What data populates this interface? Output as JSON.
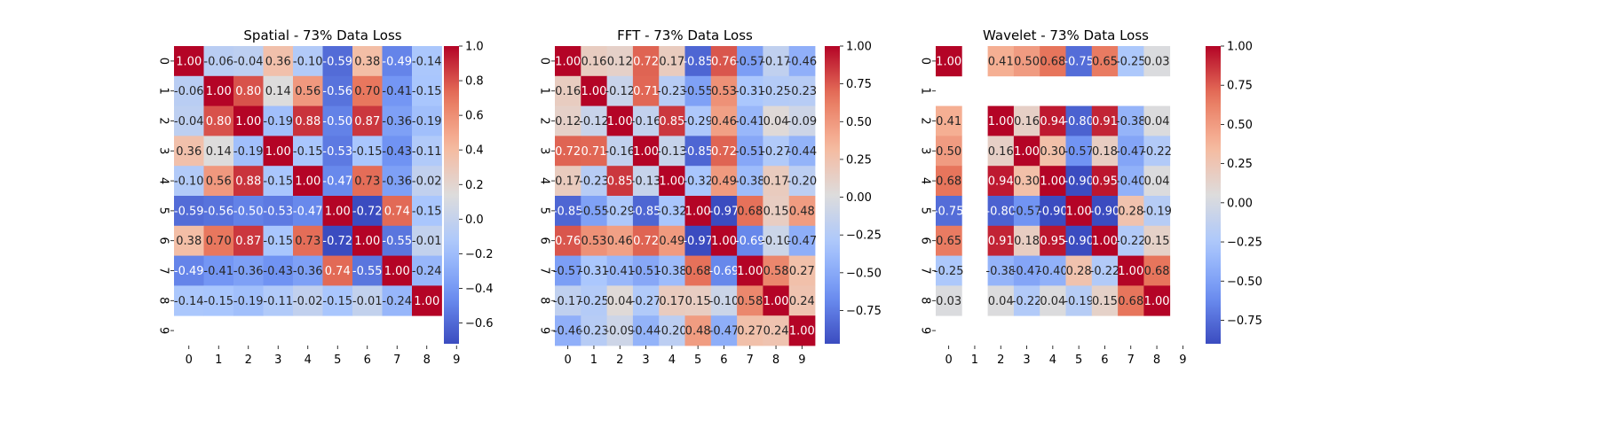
{
  "colormap": {
    "name": "coolwarm",
    "stops": [
      "#3b4cc0",
      "#6f92f3",
      "#aac7fd",
      "#dddcdc",
      "#f7b89c",
      "#e7745b",
      "#b40426"
    ]
  },
  "chart_data": [
    {
      "type": "heatmap",
      "title": "Spatial - 73% Data Loss",
      "x_ticks": [
        "0",
        "1",
        "2",
        "3",
        "4",
        "5",
        "6",
        "7",
        "8",
        "9"
      ],
      "y_ticks": [
        "0",
        "1",
        "2",
        "3",
        "4",
        "5",
        "6",
        "7",
        "8",
        "9"
      ],
      "vmin": -0.72,
      "vmax": 1.0,
      "colorbar_ticks": [
        "1.0",
        "0.8",
        "0.6",
        "0.4",
        "0.2",
        "0.0",
        "−0.2",
        "−0.4",
        "−0.6"
      ],
      "colorbar_tick_values": [
        1.0,
        0.8,
        0.6,
        0.4,
        0.2,
        0.0,
        -0.2,
        -0.4,
        -0.6
      ],
      "matrix": [
        [
          "1.00",
          "-0.06",
          "-0.04",
          "0.36",
          "-0.10",
          "-0.59",
          "0.38",
          "-0.49",
          "-0.14",
          null
        ],
        [
          "-0.06",
          "1.00",
          "0.80",
          "0.14",
          "0.56",
          "-0.56",
          "0.70",
          "-0.41",
          "-0.15",
          null
        ],
        [
          "-0.04",
          "0.80",
          "1.00",
          "-0.19",
          "0.88",
          "-0.50",
          "0.87",
          "-0.36",
          "-0.19",
          null
        ],
        [
          "0.36",
          "0.14",
          "-0.19",
          "1.00",
          "-0.15",
          "-0.53",
          "-0.15",
          "-0.43",
          "-0.11",
          null
        ],
        [
          "-0.10",
          "0.56",
          "0.88",
          "-0.15",
          "1.00",
          "-0.47",
          "0.73",
          "-0.36",
          "-0.02",
          null
        ],
        [
          "-0.59",
          "-0.56",
          "-0.50",
          "-0.53",
          "-0.47",
          "1.00",
          "-0.72",
          "0.74",
          "-0.15",
          null
        ],
        [
          "0.38",
          "0.70",
          "0.87",
          "-0.15",
          "0.73",
          "-0.72",
          "1.00",
          "-0.55",
          "-0.01",
          null
        ],
        [
          "-0.49",
          "-0.41",
          "-0.36",
          "-0.43",
          "-0.36",
          "0.74",
          "-0.55",
          "1.00",
          "-0.24",
          null
        ],
        [
          "-0.14",
          "-0.15",
          "-0.19",
          "-0.11",
          "-0.02",
          "-0.15",
          "-0.01",
          "-0.24",
          "1.00",
          null
        ],
        [
          null,
          null,
          null,
          null,
          null,
          null,
          null,
          null,
          null,
          null
        ]
      ]
    },
    {
      "type": "heatmap",
      "title": "FFT - 73% Data Loss",
      "x_ticks": [
        "0",
        "1",
        "2",
        "3",
        "4",
        "5",
        "6",
        "7",
        "8",
        "9"
      ],
      "y_ticks": [
        "0",
        "1",
        "2",
        "3",
        "4",
        "5",
        "6",
        "7",
        "8",
        "9"
      ],
      "vmin": -0.97,
      "vmax": 1.0,
      "colorbar_ticks": [
        "1.00",
        "0.75",
        "0.50",
        "0.25",
        "0.00",
        "−0.25",
        "−0.50",
        "−0.75"
      ],
      "colorbar_tick_values": [
        1.0,
        0.75,
        0.5,
        0.25,
        0.0,
        -0.25,
        -0.5,
        -0.75
      ],
      "matrix": [
        [
          "1.00",
          "0.16",
          "0.12",
          "0.72",
          "0.17",
          "-0.85",
          "0.76",
          "-0.57",
          "-0.17",
          "-0.46"
        ],
        [
          "0.16",
          "1.00",
          "-0.12",
          "0.71",
          "-0.23",
          "-0.55",
          "0.53",
          "-0.31",
          "-0.25",
          "-0.23"
        ],
        [
          "0.12",
          "-0.12",
          "1.00",
          "-0.16",
          "0.85",
          "-0.29",
          "0.46",
          "-0.41",
          "0.04",
          "-0.09"
        ],
        [
          "0.72",
          "0.71",
          "-0.16",
          "1.00",
          "-0.13",
          "-0.85",
          "0.72",
          "-0.51",
          "-0.27",
          "-0.44"
        ],
        [
          "0.17",
          "-0.23",
          "0.85",
          "-0.13",
          "1.00",
          "-0.32",
          "0.49",
          "-0.38",
          "0.17",
          "-0.20"
        ],
        [
          "-0.85",
          "-0.55",
          "-0.29",
          "-0.85",
          "-0.32",
          "1.00",
          "-0.97",
          "0.68",
          "0.15",
          "0.48"
        ],
        [
          "0.76",
          "0.53",
          "0.46",
          "0.72",
          "0.49",
          "-0.97",
          "1.00",
          "-0.69",
          "-0.10",
          "-0.47"
        ],
        [
          "-0.57",
          "-0.31",
          "-0.41",
          "-0.51",
          "-0.38",
          "0.68",
          "-0.69",
          "1.00",
          "0.58",
          "0.27"
        ],
        [
          "-0.17",
          "-0.25",
          "0.04",
          "-0.27",
          "0.17",
          "0.15",
          "-0.10",
          "0.58",
          "1.00",
          "0.24"
        ],
        [
          "-0.46",
          "-0.23",
          "-0.09",
          "-0.44",
          "-0.20",
          "0.48",
          "-0.47",
          "0.27",
          "0.24",
          "1.00"
        ]
      ]
    },
    {
      "type": "heatmap",
      "title": "Wavelet - 73% Data Loss",
      "x_ticks": [
        "0",
        "1",
        "2",
        "3",
        "4",
        "5",
        "6",
        "7",
        "8",
        "9"
      ],
      "y_ticks": [
        "0",
        "1",
        "2",
        "3",
        "4",
        "5",
        "6",
        "7",
        "8",
        "9"
      ],
      "vmin": -0.9,
      "vmax": 1.0,
      "colorbar_ticks": [
        "1.00",
        "0.75",
        "0.50",
        "0.25",
        "0.00",
        "−0.25",
        "−0.50",
        "−0.75"
      ],
      "colorbar_tick_values": [
        1.0,
        0.75,
        0.5,
        0.25,
        0.0,
        -0.25,
        -0.5,
        -0.75
      ],
      "matrix": [
        [
          "1.00",
          null,
          "0.41",
          "0.50",
          "0.68",
          "-0.75",
          "0.65",
          "-0.25",
          "0.03",
          null
        ],
        [
          null,
          null,
          null,
          null,
          null,
          null,
          null,
          null,
          null,
          null
        ],
        [
          "0.41",
          null,
          "1.00",
          "0.16",
          "0.94",
          "-0.80",
          "0.91",
          "-0.38",
          "0.04",
          null
        ],
        [
          "0.50",
          null,
          "0.16",
          "1.00",
          "0.30",
          "-0.57",
          "0.18",
          "-0.47",
          "-0.22",
          null
        ],
        [
          "0.68",
          null,
          "0.94",
          "0.30",
          "1.00",
          "-0.90",
          "0.95",
          "-0.40",
          "0.04",
          null
        ],
        [
          "-0.75",
          null,
          "-0.80",
          "-0.57",
          "-0.90",
          "1.00",
          "-0.90",
          "0.28",
          "-0.19",
          null
        ],
        [
          "0.65",
          null,
          "0.91",
          "0.18",
          "0.95",
          "-0.90",
          "1.00",
          "-0.22",
          "0.15",
          null
        ],
        [
          "-0.25",
          null,
          "-0.38",
          "-0.47",
          "-0.40",
          "0.28",
          "-0.22",
          "1.00",
          "0.68",
          null
        ],
        [
          "0.03",
          null,
          "0.04",
          "-0.22",
          "0.04",
          "-0.19",
          "0.15",
          "0.68",
          "1.00",
          null
        ],
        [
          null,
          null,
          null,
          null,
          null,
          null,
          null,
          null,
          null,
          null
        ]
      ]
    }
  ]
}
